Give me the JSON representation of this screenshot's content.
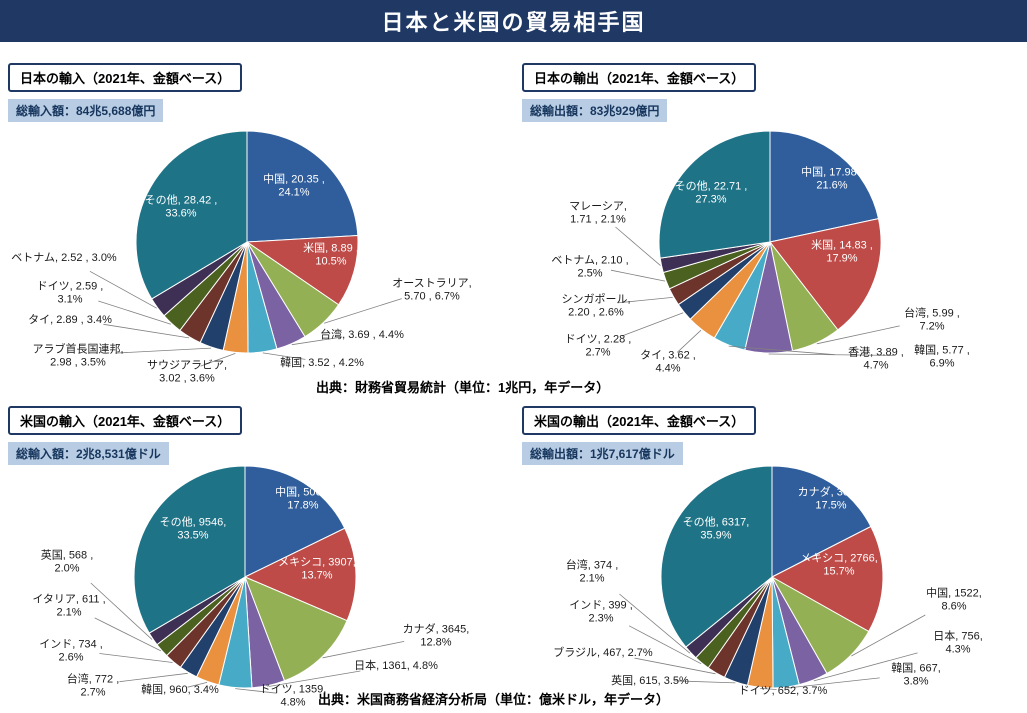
{
  "header": {
    "title": "日本と米国の貿易相手国",
    "bg_color": "#1F3864",
    "text_color": "#FFFFFF"
  },
  "sources": {
    "top": "出典：財務省貿易統計（単位：1兆円，年データ）",
    "bottom": "出典：米国商務省経済分析局（単位：億米ドル，年データ）"
  },
  "palette": {
    "blue": "#305E9C",
    "red": "#BE4B48",
    "green": "#94B054",
    "purple": "#7B62A2",
    "cyan": "#47AAC6",
    "orange": "#E9913F",
    "navy": "#21406B",
    "maroon": "#6C342B",
    "darkgreen": "#4B611F",
    "darkpurple": "#3E3054",
    "teal": "#1F7386",
    "subtitle_bg": "#B8CCE4",
    "subtitle_text": "#17365D"
  },
  "chart_data": [
    {
      "type": "pie",
      "title": "日本の輸入（2021年、金額ベース）",
      "total_label": "総輸入額：84兆5,688億円",
      "unit": "兆円",
      "center": [
        247,
        187
      ],
      "radius": 111,
      "slices": [
        {
          "name": "中国",
          "value": 20.35,
          "pct": 24.1,
          "color": "#305E9C",
          "inside": true,
          "label": [
            294,
            130
          ],
          "lines": [
            "中国, 20.35 ,",
            "24.1%"
          ]
        },
        {
          "name": "米国",
          "value": 8.89,
          "pct": 10.5,
          "color": "#BE4B48",
          "inside": true,
          "label": [
            331,
            199
          ],
          "lines": [
            "米国, 8.89 ,",
            "10.5%"
          ]
        },
        {
          "name": "オーストラリア",
          "value": 5.7,
          "pct": 6.7,
          "color": "#94B054",
          "inside": false,
          "label": [
            432,
            234
          ],
          "lines": [
            "オーストラリア,",
            "5.70 , 6.7%"
          ]
        },
        {
          "name": "台湾",
          "value": 3.69,
          "pct": 4.4,
          "color": "#7B62A2",
          "inside": false,
          "label": [
            362,
            279
          ],
          "lines": [
            "台湾, 3.69 , 4.4%"
          ]
        },
        {
          "name": "韓国",
          "value": 3.52,
          "pct": 4.2,
          "color": "#47AAC6",
          "inside": false,
          "label": [
            322,
            307
          ],
          "lines": [
            "韓国, 3.52 , 4.2%"
          ]
        },
        {
          "name": "サウジアラビア",
          "value": 3.02,
          "pct": 3.6,
          "color": "#E9913F",
          "inside": false,
          "label": [
            187,
            316
          ],
          "lines": [
            "サウジアラビア,",
            "3.02 , 3.6%"
          ]
        },
        {
          "name": "アラブ首長国連邦",
          "value": 2.98,
          "pct": 3.5,
          "color": "#21406B",
          "inside": false,
          "label": [
            78,
            300
          ],
          "lines": [
            "アラブ首長国連邦,",
            "2.98 , 3.5%"
          ]
        },
        {
          "name": "タイ",
          "value": 2.89,
          "pct": 3.4,
          "color": "#6C342B",
          "inside": false,
          "label": [
            70,
            264
          ],
          "lines": [
            "タイ, 2.89 , 3.4%"
          ]
        },
        {
          "name": "ドイツ",
          "value": 2.59,
          "pct": 3.1,
          "color": "#4B611F",
          "inside": false,
          "label": [
            70,
            237
          ],
          "lines": [
            "ドイツ, 2.59 ,",
            "3.1%"
          ]
        },
        {
          "name": "ベトナム",
          "value": 2.52,
          "pct": 3.0,
          "color": "#3E3054",
          "inside": false,
          "label": [
            64,
            202
          ],
          "lines": [
            "ベトナム, 2.52 , 3.0%"
          ]
        },
        {
          "name": "その他",
          "value": 28.42,
          "pct": 33.6,
          "color": "#1F7386",
          "inside": true,
          "label": [
            181,
            151
          ],
          "lines": [
            "その他, 28.42 ,",
            "33.6%"
          ]
        }
      ]
    },
    {
      "type": "pie",
      "title": "日本の輸出（2021年、金額ベース）",
      "total_label": "総輸出額：83兆929億円",
      "unit": "兆円",
      "center": [
        256,
        187
      ],
      "radius": 111,
      "slices": [
        {
          "name": "中国",
          "value": 17.98,
          "pct": 21.6,
          "color": "#305E9C",
          "inside": true,
          "label": [
            318,
            123
          ],
          "lines": [
            "中国, 17.98 ,",
            "21.6%"
          ]
        },
        {
          "name": "米国",
          "value": 14.83,
          "pct": 17.9,
          "color": "#BE4B48",
          "inside": true,
          "label": [
            328,
            196
          ],
          "lines": [
            "米国, 14.83 ,",
            "17.9%"
          ]
        },
        {
          "name": "台湾",
          "value": 5.99,
          "pct": 7.2,
          "color": "#94B054",
          "inside": false,
          "label": [
            418,
            264
          ],
          "lines": [
            "台湾, 5.99 ,",
            "7.2%"
          ]
        },
        {
          "name": "韓国",
          "value": 5.77,
          "pct": 6.9,
          "color": "#7B62A2",
          "inside": false,
          "label": [
            428,
            301
          ],
          "lines": [
            "韓国, 5.77 ,",
            "6.9%"
          ]
        },
        {
          "name": "香港",
          "value": 3.89,
          "pct": 4.7,
          "color": "#47AAC6",
          "inside": false,
          "label": [
            362,
            303
          ],
          "lines": [
            "香港, 3.89 ,",
            "4.7%"
          ]
        },
        {
          "name": "タイ",
          "value": 3.62,
          "pct": 4.4,
          "color": "#E9913F",
          "inside": false,
          "label": [
            154,
            306
          ],
          "lines": [
            "タイ, 3.62 ,",
            "4.4%"
          ]
        },
        {
          "name": "ドイツ",
          "value": 2.28,
          "pct": 2.7,
          "color": "#21406B",
          "inside": false,
          "label": [
            84,
            290
          ],
          "lines": [
            "ドイツ, 2.28 ,",
            "2.7%"
          ]
        },
        {
          "name": "シンガポール",
          "value": 2.2,
          "pct": 2.6,
          "color": "#6C342B",
          "inside": false,
          "label": [
            82,
            250
          ],
          "lines": [
            "シンガポール,",
            "2.20 , 2.6%"
          ]
        },
        {
          "name": "ベトナム",
          "value": 2.1,
          "pct": 2.5,
          "color": "#4B611F",
          "inside": false,
          "label": [
            76,
            211
          ],
          "lines": [
            "ベトナム, 2.10 ,",
            "2.5%"
          ]
        },
        {
          "name": "マレーシア",
          "value": 1.71,
          "pct": 2.1,
          "color": "#3E3054",
          "inside": false,
          "label": [
            84,
            157
          ],
          "lines": [
            "マレーシア,",
            "1.71 , 2.1%"
          ]
        },
        {
          "name": "その他",
          "value": 22.71,
          "pct": 27.3,
          "color": "#1F7386",
          "inside": true,
          "label": [
            197,
            137
          ],
          "lines": [
            "その他, 22.71 ,",
            "27.3%"
          ]
        }
      ]
    },
    {
      "type": "pie",
      "title": "米国の輸入（2021年、金額ベース）",
      "total_label": "総輸入額：2兆8,531億ドル",
      "unit": "億米ドル",
      "center": [
        245,
        179
      ],
      "radius": 111,
      "slices": [
        {
          "name": "中国",
          "value": 5068,
          "pct": 17.8,
          "color": "#305E9C",
          "inside": true,
          "label": [
            303,
            100
          ],
          "lines": [
            "中国, 5068,",
            "17.8%"
          ]
        },
        {
          "name": "メキシコ",
          "value": 3907,
          "pct": 13.7,
          "color": "#BE4B48",
          "inside": true,
          "label": [
            317,
            170
          ],
          "lines": [
            "メキシコ, 3907,",
            "13.7%"
          ]
        },
        {
          "name": "カナダ",
          "value": 3645,
          "pct": 12.8,
          "color": "#94B054",
          "inside": false,
          "label": [
            436,
            237
          ],
          "lines": [
            "カナダ, 3645,",
            "12.8%"
          ]
        },
        {
          "name": "日本",
          "value": 1361,
          "pct": 4.8,
          "color": "#7B62A2",
          "inside": false,
          "label": [
            396,
            267
          ],
          "lines": [
            "日本, 1361, 4.8%"
          ]
        },
        {
          "name": "ドイツ",
          "value": 1359,
          "pct": 4.8,
          "color": "#47AAC6",
          "inside": false,
          "label": [
            293,
            297
          ],
          "lines": [
            "ドイツ, 1359,",
            "4.8%"
          ]
        },
        {
          "name": "韓国",
          "value": 960,
          "pct": 3.4,
          "color": "#E9913F",
          "inside": false,
          "label": [
            180,
            291
          ],
          "lines": [
            "韓国, 960, 3.4%"
          ]
        },
        {
          "name": "台湾",
          "value": 772,
          "pct": 2.7,
          "color": "#21406B",
          "inside": false,
          "label": [
            93,
            287
          ],
          "lines": [
            "台湾, 772 ,",
            "2.7%"
          ]
        },
        {
          "name": "インド",
          "value": 734,
          "pct": 2.6,
          "color": "#6C342B",
          "inside": false,
          "label": [
            71,
            252
          ],
          "lines": [
            "インド, 734 ,",
            "2.6%"
          ]
        },
        {
          "name": "イタリア",
          "value": 611,
          "pct": 2.1,
          "color": "#4B611F",
          "inside": false,
          "label": [
            69,
            207
          ],
          "lines": [
            "イタリア, 611 ,",
            "2.1%"
          ]
        },
        {
          "name": "英国",
          "value": 568,
          "pct": 2.0,
          "color": "#3E3054",
          "inside": false,
          "label": [
            67,
            163
          ],
          "lines": [
            "英国, 568 ,",
            "2.0%"
          ]
        },
        {
          "name": "その他",
          "value": 9546,
          "pct": 33.5,
          "color": "#1F7386",
          "inside": true,
          "label": [
            193,
            130
          ],
          "lines": [
            "その他, 9546,",
            "33.5%"
          ]
        }
      ]
    },
    {
      "type": "pie",
      "title": "米国の輸出（2021年、金額ベース）",
      "total_label": "総輸出額：1兆7,617億ドル",
      "unit": "億米ドル",
      "center": [
        258,
        179
      ],
      "radius": 111,
      "slices": [
        {
          "name": "カナダ",
          "value": 3082,
          "pct": 17.5,
          "color": "#305E9C",
          "inside": true,
          "label": [
            317,
            100
          ],
          "lines": [
            "カナダ, 3082,",
            "17.5%"
          ]
        },
        {
          "name": "メキシコ",
          "value": 2766,
          "pct": 15.7,
          "color": "#BE4B48",
          "inside": true,
          "label": [
            325,
            166
          ],
          "lines": [
            "メキシコ, 2766,",
            "15.7%"
          ]
        },
        {
          "name": "中国",
          "value": 1522,
          "pct": 8.6,
          "color": "#94B054",
          "inside": false,
          "label": [
            440,
            201
          ],
          "lines": [
            "中国, 1522,",
            "8.6%"
          ]
        },
        {
          "name": "日本",
          "value": 756,
          "pct": 4.3,
          "color": "#7B62A2",
          "inside": false,
          "label": [
            444,
            244
          ],
          "lines": [
            "日本, 756,",
            "4.3%"
          ]
        },
        {
          "name": "韓国",
          "value": 667,
          "pct": 3.8,
          "color": "#47AAC6",
          "inside": false,
          "label": [
            402,
            276
          ],
          "lines": [
            "韓国, 667,",
            "3.8%"
          ]
        },
        {
          "name": "ドイツ",
          "value": 652,
          "pct": 3.7,
          "color": "#E9913F",
          "inside": false,
          "label": [
            269,
            292
          ],
          "lines": [
            "ドイツ, 652, 3.7%"
          ]
        },
        {
          "name": "英国",
          "value": 615,
          "pct": 3.5,
          "color": "#21406B",
          "inside": false,
          "label": [
            136,
            282
          ],
          "lines": [
            "英国, 615, 3.5%"
          ]
        },
        {
          "name": "ブラジル",
          "value": 467,
          "pct": 2.7,
          "color": "#6C342B",
          "inside": false,
          "label": [
            89,
            254
          ],
          "lines": [
            "ブラジル, 467, 2.7%"
          ]
        },
        {
          "name": "インド",
          "value": 399,
          "pct": 2.3,
          "color": "#4B611F",
          "inside": false,
          "label": [
            87,
            213
          ],
          "lines": [
            "インド, 399 ,",
            "2.3%"
          ]
        },
        {
          "name": "台湾",
          "value": 374,
          "pct": 2.1,
          "color": "#3E3054",
          "inside": false,
          "label": [
            78,
            173
          ],
          "lines": [
            "台湾, 374 ,",
            "2.1%"
          ]
        },
        {
          "name": "その他",
          "value": 6317,
          "pct": 35.9,
          "color": "#1F7386",
          "inside": true,
          "label": [
            202,
            130
          ],
          "lines": [
            "その他, 6317,",
            "35.9%"
          ]
        }
      ]
    }
  ]
}
